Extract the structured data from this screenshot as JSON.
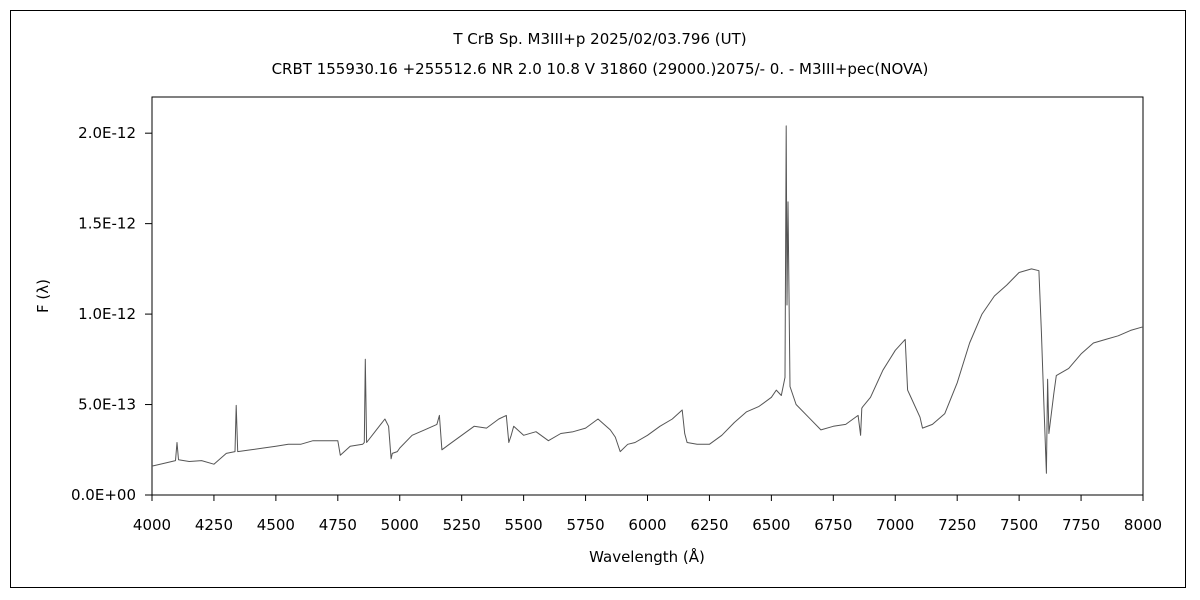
{
  "chart_data": {
    "type": "line",
    "title": "T CrB    Sp. M3III+p    2025/02/03.796 (UT)",
    "subtitle": "CRBT 155930.16 +255512.6 NR 2.0 10.8 V 31860 (29000.)2075/-  0. - M3III+pec(NOVA)",
    "xlabel": "Wavelength (Å)",
    "ylabel": "F (λ)",
    "xlim": [
      4000,
      8000
    ],
    "ylim": [
      0,
      2.2e-12
    ],
    "grid": false,
    "x_ticks": [
      4000,
      4250,
      4500,
      4750,
      5000,
      5250,
      5500,
      5750,
      6000,
      6250,
      6500,
      6750,
      7000,
      7250,
      7500,
      7750,
      8000
    ],
    "x_tick_labels": [
      "4000",
      "4250",
      "4500",
      "4750",
      "5000",
      "5250",
      "5500",
      "5750",
      "6000",
      "6250",
      "6500",
      "6750",
      "7000",
      "7250",
      "7500",
      "7750",
      "8000"
    ],
    "y_ticks": [
      0,
      5e-13,
      1e-12,
      1.5e-12,
      2e-12
    ],
    "y_tick_labels": [
      "0.0E+00",
      "5.0E-13",
      "1.0E-12",
      "1.5E-12",
      "2.0E-12"
    ],
    "series": [
      {
        "color": "#555555",
        "x": [
          4000,
          4050,
          4095,
          4101,
          4107,
          4150,
          4200,
          4250,
          4300,
          4335,
          4340,
          4346,
          4400,
          4450,
          4500,
          4550,
          4600,
          4650,
          4700,
          4750,
          4760,
          4800,
          4850,
          4857,
          4861,
          4866,
          4900,
          4940,
          4955,
          4965,
          4970,
          4990,
          5000,
          5050,
          5100,
          5150,
          5160,
          5170,
          5200,
          5250,
          5300,
          5350,
          5400,
          5430,
          5440,
          5450,
          5460,
          5500,
          5550,
          5600,
          5650,
          5700,
          5750,
          5800,
          5850,
          5870,
          5890,
          5920,
          5950,
          6000,
          6050,
          6100,
          6140,
          6150,
          6160,
          6200,
          6250,
          6300,
          6350,
          6400,
          6450,
          6500,
          6520,
          6540,
          6555,
          6560,
          6563,
          6567,
          6575,
          6600,
          6650,
          6700,
          6750,
          6800,
          6850,
          6860,
          6865,
          6870,
          6900,
          6950,
          7000,
          7040,
          7050,
          7060,
          7100,
          7110,
          7150,
          7200,
          7250,
          7300,
          7350,
          7400,
          7450,
          7500,
          7550,
          7580,
          7590,
          7600,
          7610,
          7615,
          7620,
          7640,
          7650,
          7700,
          7750,
          7800,
          7850,
          7900,
          7950,
          8000
        ],
        "values": [
          1.6e-13,
          1.75e-13,
          1.9e-13,
          2.9e-13,
          1.95e-13,
          1.85e-13,
          1.9e-13,
          1.7e-13,
          2.3e-13,
          2.4e-13,
          4.95e-13,
          2.4e-13,
          2.5e-13,
          2.6e-13,
          2.7e-13,
          2.8e-13,
          2.8e-13,
          3e-13,
          3e-13,
          3e-13,
          2.2e-13,
          2.7e-13,
          2.8e-13,
          2.9e-13,
          7.5e-13,
          2.9e-13,
          3.5e-13,
          4.2e-13,
          3.8e-13,
          2e-13,
          2.3e-13,
          2.4e-13,
          2.6e-13,
          3.3e-13,
          3.6e-13,
          3.9e-13,
          4.4e-13,
          2.5e-13,
          2.8e-13,
          3.3e-13,
          3.8e-13,
          3.7e-13,
          4.2e-13,
          4.4e-13,
          2.9e-13,
          3.3e-13,
          3.8e-13,
          3.3e-13,
          3.5e-13,
          3e-13,
          3.4e-13,
          3.5e-13,
          3.7e-13,
          4.2e-13,
          3.6e-13,
          3.2e-13,
          2.4e-13,
          2.8e-13,
          2.9e-13,
          3.3e-13,
          3.8e-13,
          4.2e-13,
          4.7e-13,
          3.4e-13,
          2.9e-13,
          2.8e-13,
          2.8e-13,
          3.3e-13,
          4e-13,
          4.6e-13,
          4.9e-13,
          5.4e-13,
          5.8e-13,
          5.5e-13,
          6.5e-13,
          2.04e-12,
          1.05e-12,
          1.62e-12,
          6e-13,
          5e-13,
          4.3e-13,
          3.6e-13,
          3.8e-13,
          3.9e-13,
          4.4e-13,
          3.3e-13,
          4.8e-13,
          4.9e-13,
          5.4e-13,
          6.9e-13,
          8e-13,
          8.6e-13,
          5.8e-13,
          5.5e-13,
          4.3e-13,
          3.7e-13,
          3.9e-13,
          4.5e-13,
          6.2e-13,
          8.4e-13,
          1e-12,
          1.1e-12,
          1.16e-12,
          1.23e-12,
          1.25e-12,
          1.24e-12,
          9e-13,
          5e-13,
          1.2e-13,
          6.4e-13,
          3.4e-13,
          5.6e-13,
          6.6e-13,
          7e-13,
          7.8e-13,
          8.4e-13,
          8.6e-13,
          8.8e-13,
          9.1e-13,
          9.3e-13
        ]
      }
    ]
  }
}
